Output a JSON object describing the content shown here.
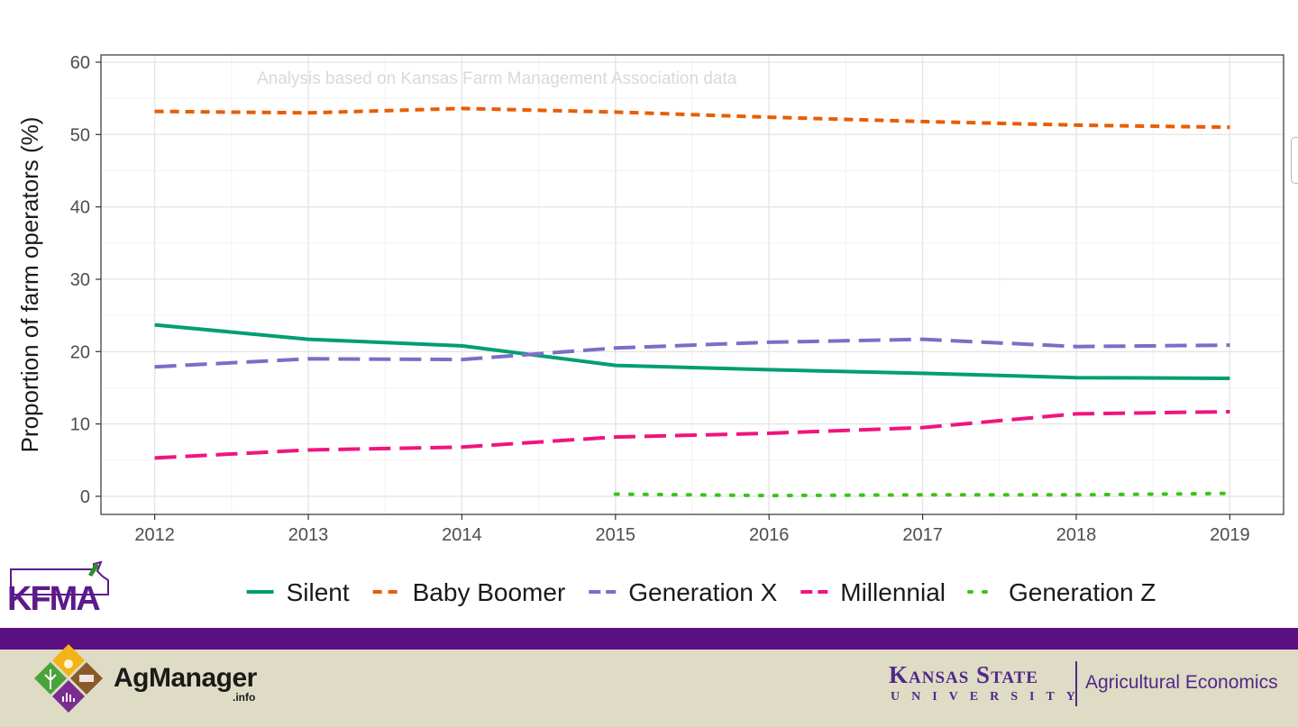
{
  "chart_data": {
    "type": "line",
    "title": "",
    "annotation": "Analysis based on Kansas Farm Management Association data",
    "xlabel": "",
    "ylabel": "Proportion of farm operators (%)",
    "x": [
      2012,
      2013,
      2014,
      2015,
      2016,
      2017,
      2018,
      2019
    ],
    "xlim": [
      2011.65,
      2019.35
    ],
    "ylim": [
      -2.5,
      61.0
    ],
    "yticks": [
      0,
      10,
      20,
      30,
      40,
      50,
      60
    ],
    "grid": true,
    "legend_position": "bottom",
    "series": [
      {
        "name": "Silent",
        "color": "#009e73",
        "dash": "solid",
        "x": [
          2012,
          2013,
          2014,
          2015,
          2016,
          2017,
          2018,
          2019
        ],
        "values": [
          23.7,
          21.7,
          20.8,
          18.1,
          17.5,
          17.0,
          16.4,
          16.3
        ]
      },
      {
        "name": "Baby Boomer",
        "color": "#e85d04",
        "dash": "short",
        "x": [
          2012,
          2013,
          2014,
          2015,
          2016,
          2017,
          2018,
          2019
        ],
        "values": [
          53.2,
          53.0,
          53.6,
          53.1,
          52.4,
          51.8,
          51.3,
          51.0
        ]
      },
      {
        "name": "Generation X",
        "color": "#7b6ec6",
        "dash": "long",
        "x": [
          2012,
          2013,
          2014,
          2015,
          2016,
          2017,
          2018,
          2019
        ],
        "values": [
          17.9,
          19.0,
          18.9,
          20.5,
          21.3,
          21.7,
          20.7,
          20.9
        ]
      },
      {
        "name": "Millennial",
        "color": "#f0147e",
        "dash": "long",
        "x": [
          2012,
          2013,
          2014,
          2015,
          2016,
          2017,
          2018,
          2019
        ],
        "values": [
          5.3,
          6.4,
          6.8,
          8.2,
          8.7,
          9.5,
          11.4,
          11.7
        ]
      },
      {
        "name": "Generation Z",
        "color": "#3ec21e",
        "dash": "dotted",
        "x": [
          2015,
          2016,
          2017,
          2018,
          2019
        ],
        "values": [
          0.3,
          0.1,
          0.2,
          0.2,
          0.4
        ]
      }
    ]
  },
  "logos": {
    "kfma": "KFMA",
    "agmanager_name": "AgManager",
    "agmanager_sub": ".info",
    "ksu_line1": "Kansas State",
    "ksu_line2": "UNIVERSITY",
    "ksu_dept": "Agricultural Economics"
  },
  "colors": {
    "purple_band": "#5a0f82",
    "footer_bg": "#dedcc4",
    "ksu_purple": "#512888"
  }
}
